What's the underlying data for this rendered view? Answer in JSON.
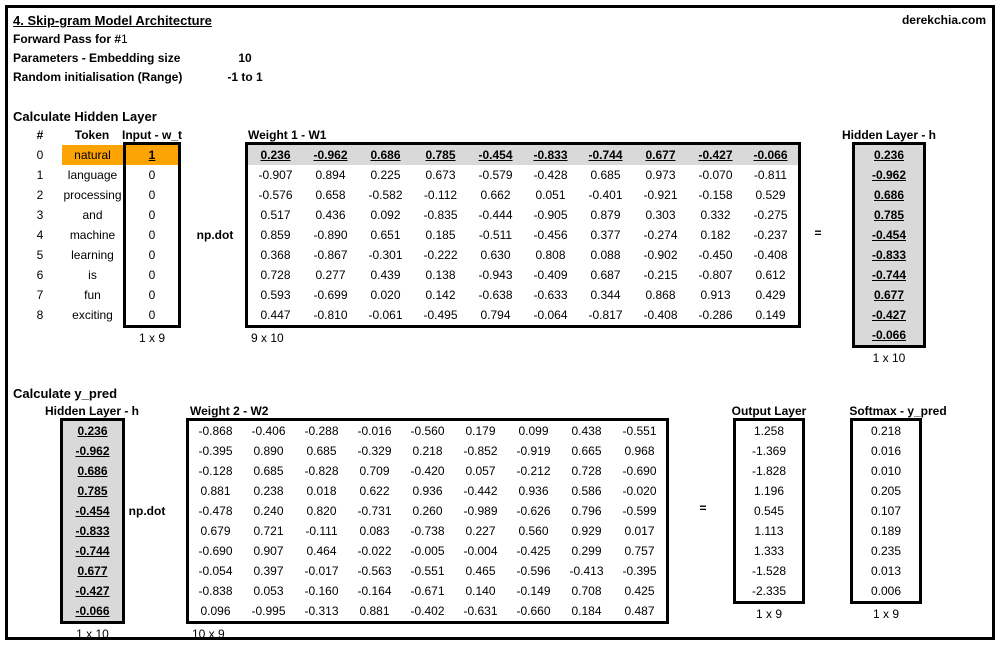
{
  "colors": {
    "highlight": "#FCA404",
    "matrix_gray": "#D9D9D9",
    "border": "#000000"
  },
  "header": {
    "title": "4. Skip-gram Model Architecture",
    "site": "derekchia.com",
    "subtitle_prefix": "Forward Pass for #",
    "subtitle_number": "1",
    "param_embedding_label": "Parameters - Embedding size",
    "param_embedding_value": "10",
    "param_random_label": "Random initialisation (Range)",
    "param_random_value": "-1 to 1"
  },
  "section1": {
    "heading": "Calculate Hidden Layer",
    "col_index": "#",
    "col_token": "Token",
    "col_input": "Input - w_t",
    "indexes": [
      "0",
      "1",
      "2",
      "3",
      "4",
      "5",
      "6",
      "7",
      "8"
    ],
    "tokens": [
      "natural",
      "language",
      "processing",
      "and",
      "machine",
      "learning",
      "is",
      "fun",
      "exciting"
    ],
    "input": [
      "1",
      "0",
      "0",
      "0",
      "0",
      "0",
      "0",
      "0",
      "0"
    ],
    "input_dim": "1 x 9",
    "np_dot": "np.dot",
    "w1_title": "Weight 1 - W1",
    "w1": [
      [
        "0.236",
        "-0.962",
        "0.686",
        "0.785",
        "-0.454",
        "-0.833",
        "-0.744",
        "0.677",
        "-0.427",
        "-0.066"
      ],
      [
        "-0.907",
        "0.894",
        "0.225",
        "0.673",
        "-0.579",
        "-0.428",
        "0.685",
        "0.973",
        "-0.070",
        "-0.811"
      ],
      [
        "-0.576",
        "0.658",
        "-0.582",
        "-0.112",
        "0.662",
        "0.051",
        "-0.401",
        "-0.921",
        "-0.158",
        "0.529"
      ],
      [
        "0.517",
        "0.436",
        "0.092",
        "-0.835",
        "-0.444",
        "-0.905",
        "0.879",
        "0.303",
        "0.332",
        "-0.275"
      ],
      [
        "0.859",
        "-0.890",
        "0.651",
        "0.185",
        "-0.511",
        "-0.456",
        "0.377",
        "-0.274",
        "0.182",
        "-0.237"
      ],
      [
        "0.368",
        "-0.867",
        "-0.301",
        "-0.222",
        "0.630",
        "0.808",
        "0.088",
        "-0.902",
        "-0.450",
        "-0.408"
      ],
      [
        "0.728",
        "0.277",
        "0.439",
        "0.138",
        "-0.943",
        "-0.409",
        "0.687",
        "-0.215",
        "-0.807",
        "0.612"
      ],
      [
        "0.593",
        "-0.699",
        "0.020",
        "0.142",
        "-0.638",
        "-0.633",
        "0.344",
        "0.868",
        "0.913",
        "0.429"
      ],
      [
        "0.447",
        "-0.810",
        "-0.061",
        "-0.495",
        "0.794",
        "-0.064",
        "-0.817",
        "-0.408",
        "-0.286",
        "0.149"
      ]
    ],
    "w1_dim": "9 x 10",
    "equals": "=",
    "hidden_title": "Hidden Layer - h",
    "hidden": [
      "0.236",
      "-0.962",
      "0.686",
      "0.785",
      "-0.454",
      "-0.833",
      "-0.744",
      "0.677",
      "-0.427",
      "-0.066"
    ],
    "hidden_dim": "1 x 10"
  },
  "section2": {
    "heading": "Calculate y_pred",
    "hidden_title": "Hidden Layer - h",
    "hidden": [
      "0.236",
      "-0.962",
      "0.686",
      "0.785",
      "-0.454",
      "-0.833",
      "-0.744",
      "0.677",
      "-0.427",
      "-0.066"
    ],
    "hidden_dim": "1 x 10",
    "np_dot": "np.dot",
    "w2_title": "Weight 2 - W2",
    "w2": [
      [
        "-0.868",
        "-0.406",
        "-0.288",
        "-0.016",
        "-0.560",
        "0.179",
        "0.099",
        "0.438",
        "-0.551"
      ],
      [
        "-0.395",
        "0.890",
        "0.685",
        "-0.329",
        "0.218",
        "-0.852",
        "-0.919",
        "0.665",
        "0.968"
      ],
      [
        "-0.128",
        "0.685",
        "-0.828",
        "0.709",
        "-0.420",
        "0.057",
        "-0.212",
        "0.728",
        "-0.690"
      ],
      [
        "0.881",
        "0.238",
        "0.018",
        "0.622",
        "0.936",
        "-0.442",
        "0.936",
        "0.586",
        "-0.020"
      ],
      [
        "-0.478",
        "0.240",
        "0.820",
        "-0.731",
        "0.260",
        "-0.989",
        "-0.626",
        "0.796",
        "-0.599"
      ],
      [
        "0.679",
        "0.721",
        "-0.111",
        "0.083",
        "-0.738",
        "0.227",
        "0.560",
        "0.929",
        "0.017"
      ],
      [
        "-0.690",
        "0.907",
        "0.464",
        "-0.022",
        "-0.005",
        "-0.004",
        "-0.425",
        "0.299",
        "0.757"
      ],
      [
        "-0.054",
        "0.397",
        "-0.017",
        "-0.563",
        "-0.551",
        "0.465",
        "-0.596",
        "-0.413",
        "-0.395"
      ],
      [
        "-0.838",
        "0.053",
        "-0.160",
        "-0.164",
        "-0.671",
        "0.140",
        "-0.149",
        "0.708",
        "0.425"
      ],
      [
        "0.096",
        "-0.995",
        "-0.313",
        "0.881",
        "-0.402",
        "-0.631",
        "-0.660",
        "0.184",
        "0.487"
      ]
    ],
    "w2_dim": "10 x 9",
    "equals": "=",
    "output_title": "Output Layer",
    "output": [
      "1.258",
      "-1.369",
      "-1.828",
      "1.196",
      "0.545",
      "1.113",
      "1.333",
      "-1.528",
      "-2.335"
    ],
    "output_dim": "1 x 9",
    "softmax_title": "Softmax - y_pred",
    "softmax": [
      "0.218",
      "0.016",
      "0.010",
      "0.205",
      "0.107",
      "0.189",
      "0.235",
      "0.013",
      "0.006"
    ],
    "softmax_dim": "1 x 9"
  }
}
